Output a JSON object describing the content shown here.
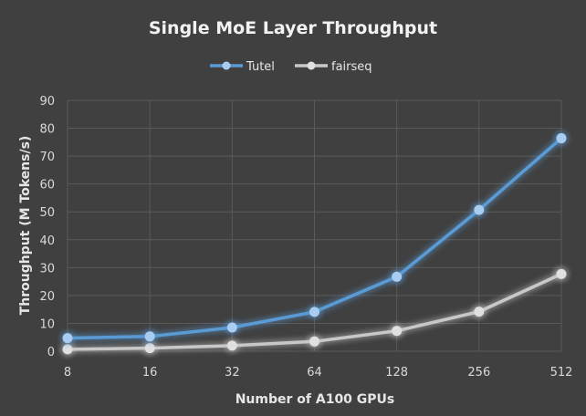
{
  "chart_data": {
    "type": "line",
    "title": "Single MoE Layer Throughput",
    "xlabel": "Number of A100 GPUs",
    "ylabel": "Throughput (M Tokens/s)",
    "categories": [
      "8",
      "16",
      "32",
      "64",
      "128",
      "256",
      "512"
    ],
    "ylim": [
      0,
      90
    ],
    "yticks": [
      0,
      10,
      20,
      30,
      40,
      50,
      60,
      70,
      80,
      90
    ],
    "grid": true,
    "legend": "top",
    "series": [
      {
        "name": "Tutel",
        "color": "#5b9bd5",
        "values": [
          4.7,
          5.3,
          8.5,
          14.1,
          26.7,
          50.7,
          76.4
        ]
      },
      {
        "name": "fairseq",
        "color": "#c8c8c8",
        "values": [
          0.7,
          1.1,
          2.0,
          3.5,
          7.3,
          14.2,
          27.7
        ]
      }
    ]
  }
}
